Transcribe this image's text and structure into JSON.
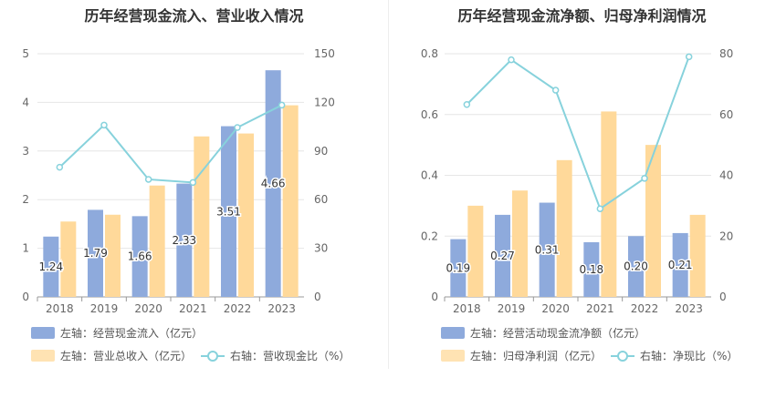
{
  "charts": {
    "left": {
      "title": "历年经营现金流入、营业收入情况",
      "legend": {
        "bar1": "左轴：经营现金流入（亿元）",
        "bar2": "左轴：营业总收入（亿元）",
        "line": "右轴：营收现金比（%）"
      }
    },
    "right": {
      "title": "历年经营现金流净额、归母净利润情况",
      "legend": {
        "bar1": "左轴：经营活动现金流净额（亿元）",
        "bar2": "左轴：归母净利润（亿元）",
        "line": "右轴：净现比（%）"
      }
    }
  },
  "colors": {
    "bar1": "#8eaadc",
    "bar2": "#ffd99a",
    "line": "#87d2dc",
    "grid": "#e6e6e6"
  },
  "chart_data": [
    {
      "type": "bar",
      "title": "历年经营现金流入、营业收入情况",
      "categories": [
        "2018",
        "2019",
        "2020",
        "2021",
        "2022",
        "2023"
      ],
      "ylim_left": [
        0,
        5
      ],
      "yticks_left": [
        "0",
        "1",
        "2",
        "3",
        "4",
        "5"
      ],
      "ylim_right": [
        0,
        150
      ],
      "yticks_right": [
        "0",
        "30",
        "60",
        "90",
        "120",
        "150"
      ],
      "series": [
        {
          "name": "左轴：经营现金流入（亿元）",
          "axis": "left",
          "type": "bar",
          "values": [
            1.24,
            1.79,
            1.66,
            2.33,
            3.51,
            4.66
          ],
          "labels": [
            "1.24",
            "1.79",
            "1.66",
            "2.33",
            "3.51",
            "4.66"
          ]
        },
        {
          "name": "左轴：营业总收入（亿元）",
          "axis": "left",
          "type": "bar",
          "values": [
            1.55,
            1.69,
            2.29,
            3.3,
            3.36,
            3.94
          ]
        },
        {
          "name": "右轴：营收现金比（%）",
          "axis": "right",
          "type": "line",
          "values": [
            80,
            106,
            72.5,
            70.6,
            104.5,
            118.3
          ]
        }
      ]
    },
    {
      "type": "bar",
      "title": "历年经营现金流净额、归母净利润情况",
      "categories": [
        "2018",
        "2019",
        "2020",
        "2021",
        "2022",
        "2023"
      ],
      "ylim_left": [
        0,
        0.8
      ],
      "yticks_left": [
        "0",
        "0.2",
        "0.4",
        "0.6",
        "0.8"
      ],
      "ylim_right": [
        0,
        80
      ],
      "yticks_right": [
        "0",
        "20",
        "40",
        "60",
        "80"
      ],
      "series": [
        {
          "name": "左轴：经营活动现金流净额（亿元）",
          "axis": "left",
          "type": "bar",
          "values": [
            0.19,
            0.27,
            0.31,
            0.18,
            0.2,
            0.21
          ],
          "labels": [
            "0.19",
            "0.27",
            "0.31",
            "0.18",
            "0.20",
            "0.21"
          ]
        },
        {
          "name": "左轴：归母净利润（亿元）",
          "axis": "left",
          "type": "bar",
          "values": [
            0.3,
            0.35,
            0.45,
            0.61,
            0.5,
            0.27
          ]
        },
        {
          "name": "右轴：净现比（%）",
          "axis": "right",
          "type": "line",
          "values": [
            63.3,
            78,
            68,
            29,
            39,
            79
          ]
        }
      ]
    }
  ]
}
